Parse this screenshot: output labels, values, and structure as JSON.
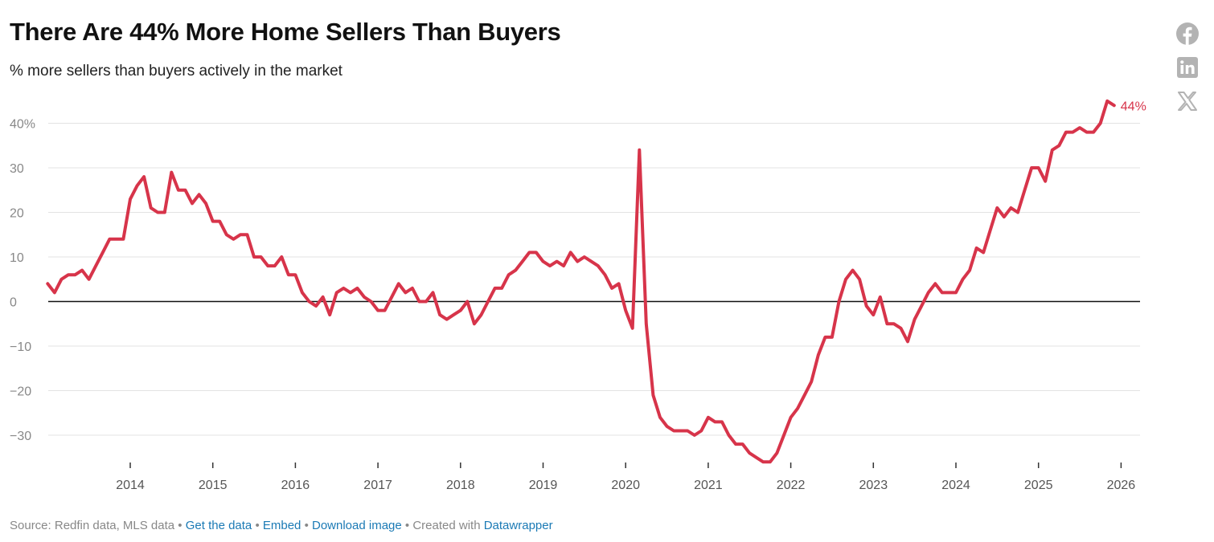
{
  "header": {
    "title": "There Are 44% More Home Sellers Than Buyers",
    "subtitle": "% more sellers than buyers actively in the market"
  },
  "social": [
    "facebook-icon",
    "linkedin-icon",
    "x-icon"
  ],
  "colors": {
    "line": "#d7344a",
    "grid": "#e3e3e3",
    "zero": "#111111",
    "link": "#1b7ab5"
  },
  "footer": {
    "source": "Source: Redfin data, MLS data",
    "sep": " • ",
    "get_data": "Get the data",
    "embed": "Embed",
    "download": "Download image",
    "created": "Created with",
    "datawrapper": "Datawrapper"
  },
  "chart_data": {
    "type": "line",
    "title": "There Are 44% More Home Sellers Than Buyers",
    "subtitle": "% more sellers than buyers actively in the market",
    "xlabel": "",
    "ylabel": "",
    "ylim": [
      -36,
      44
    ],
    "y_ticks": [
      -30,
      -20,
      -10,
      0,
      10,
      20,
      30,
      40
    ],
    "y_tick_labels": [
      "−30",
      "−20",
      "−10",
      "0",
      "10",
      "20",
      "30",
      "40%"
    ],
    "x_ticks": [
      2014,
      2015,
      2016,
      2017,
      2018,
      2019,
      2020,
      2021,
      2022,
      2023,
      2024,
      2025,
      2026
    ],
    "x_tick_labels": [
      "2014",
      "2015",
      "2016",
      "2017",
      "2018",
      "2019",
      "2020",
      "2021",
      "2022",
      "2023",
      "2024",
      "2025",
      "2026"
    ],
    "start": 2013.0,
    "step": 0.08333,
    "end_label": "44%",
    "series": [
      {
        "name": "% more sellers than buyers",
        "values": [
          4,
          2,
          5,
          6,
          6,
          7,
          5,
          8,
          11,
          14,
          14,
          14,
          23,
          26,
          28,
          21,
          20,
          20,
          29,
          25,
          25,
          22,
          24,
          22,
          18,
          18,
          15,
          14,
          15,
          15,
          10,
          10,
          8,
          8,
          10,
          6,
          6,
          2,
          0,
          -1,
          1,
          -3,
          2,
          3,
          2,
          3,
          1,
          0,
          -2,
          -2,
          1,
          4,
          2,
          3,
          0,
          0,
          2,
          -3,
          -4,
          -3,
          -2,
          0,
          -5,
          -3,
          0,
          3,
          3,
          6,
          7,
          9,
          11,
          11,
          9,
          8,
          9,
          8,
          11,
          9,
          10,
          9,
          8,
          6,
          3,
          4,
          -2,
          -6,
          34,
          -5,
          -21,
          -26,
          -28,
          -29,
          -29,
          -29,
          -30,
          -29,
          -26,
          -27,
          -27,
          -30,
          -32,
          -32,
          -34,
          -35,
          -36,
          -36,
          -34,
          -30,
          -26,
          -24,
          -21,
          -18,
          -12,
          -8,
          -8,
          0,
          5,
          7,
          5,
          -1,
          -3,
          1,
          -5,
          -5,
          -6,
          -9,
          -4,
          -1,
          2,
          4,
          2,
          2,
          2,
          5,
          7,
          12,
          11,
          16,
          21,
          19,
          21,
          20,
          25,
          30,
          30,
          27,
          34,
          35,
          38,
          38,
          39,
          38,
          38,
          40,
          45,
          44
        ]
      }
    ]
  }
}
